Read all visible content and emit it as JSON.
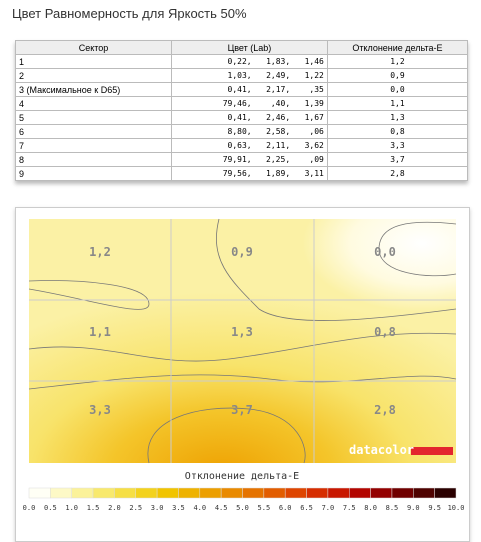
{
  "title": "Цвет Равномерность для Яркость 50%",
  "table": {
    "header": [
      "Сектор",
      "Цвет (Lab)",
      "Отклонение дельта-E"
    ],
    "rows": [
      [
        "1",
        "0,22,   1,83,   1,46",
        "1,2"
      ],
      [
        "2",
        "1,03,   2,49,   1,22",
        "0,9"
      ],
      [
        "3 (Максимальное к D65)",
        "0,41,   2,17,    ,35",
        "0,0"
      ],
      [
        "4",
        "79,46,    ,40,   1,39",
        "1,1"
      ],
      [
        "5",
        "0,41,   2,46,   1,67",
        "1,3"
      ],
      [
        "6",
        "8,80,   2,58,    ,06",
        "0,8"
      ],
      [
        "7",
        "0,63,   2,11,   3,62",
        "3,3"
      ],
      [
        "8",
        "79,91,   2,25,    ,09",
        "3,7"
      ],
      [
        "9",
        "79,56,   1,89,   3,11",
        "2,8"
      ]
    ]
  },
  "map": {
    "cells": [
      "1,2",
      "0,9",
      "0,0",
      "1,1",
      "1,3",
      "0,8",
      "3,3",
      "3,7",
      "2,8"
    ],
    "brand": "datacolor"
  },
  "scale": {
    "title": "Отклонение дельта-E",
    "ticks": [
      "0.0",
      "0.5",
      "1.0",
      "1.5",
      "2.0",
      "2.5",
      "3.0",
      "3.5",
      "4.0",
      "4.5",
      "5.0",
      "5.5",
      "6.0",
      "6.5",
      "7.0",
      "7.5",
      "8.0",
      "8.5",
      "9.0",
      "9.5",
      "10.0"
    ],
    "colors": [
      "#fffff5",
      "#fdf9c6",
      "#fbf29a",
      "#f8e96d",
      "#f6df45",
      "#f3d21d",
      "#f1c400",
      "#eeb200",
      "#ec9f00",
      "#e98a00",
      "#e57300",
      "#e25d00",
      "#de4500",
      "#d62d00",
      "#c81700",
      "#b30500",
      "#930000",
      "#700000",
      "#4e0200",
      "#2a0000"
    ]
  }
}
